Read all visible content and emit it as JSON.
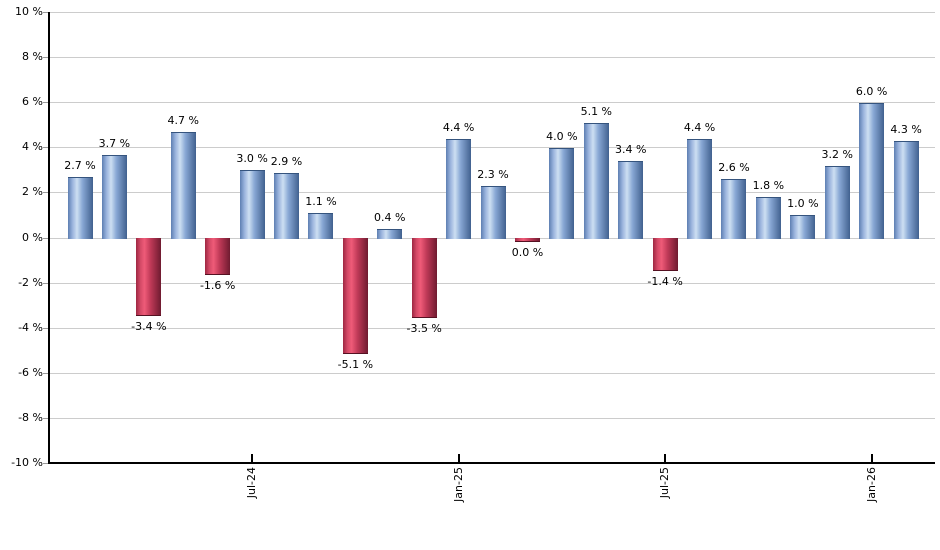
{
  "chart_data": {
    "type": "bar",
    "title": "",
    "xlabel": "",
    "ylabel": "",
    "unit": "%",
    "ylim": [
      -10,
      10
    ],
    "ytick_step": 2,
    "grid": true,
    "legend": false,
    "y_tick_labels": [
      "10 %",
      "8 %",
      "6 %",
      "4 %",
      "2 %",
      "0 %",
      "-2 %",
      "-4 %",
      "-6 %",
      "-8 %",
      "-10 %"
    ],
    "x_ticks": [
      {
        "label": "Jul-24",
        "bar_index": 5
      },
      {
        "label": "Jan-25",
        "bar_index": 11
      },
      {
        "label": "Jul-25",
        "bar_index": 17
      },
      {
        "label": "Jan-26",
        "bar_index": 23
      }
    ],
    "bars": [
      {
        "value": 2.7,
        "label": "2.7 %",
        "color": "positive"
      },
      {
        "value": 3.7,
        "label": "3.7 %",
        "color": "positive"
      },
      {
        "value": -3.4,
        "label": "-3.4 %",
        "color": "negative"
      },
      {
        "value": 4.7,
        "label": "4.7 %",
        "color": "positive"
      },
      {
        "value": -1.6,
        "label": "-1.6 %",
        "color": "negative"
      },
      {
        "value": 3.0,
        "label": "3.0 %",
        "color": "positive"
      },
      {
        "value": 2.9,
        "label": "2.9 %",
        "color": "positive"
      },
      {
        "value": 1.1,
        "label": "1.1 %",
        "color": "positive"
      },
      {
        "value": -5.1,
        "label": "-5.1 %",
        "color": "negative"
      },
      {
        "value": 0.4,
        "label": "0.4 %",
        "color": "positive"
      },
      {
        "value": -3.5,
        "label": "-3.5 %",
        "color": "negative"
      },
      {
        "value": 4.4,
        "label": "4.4 %",
        "color": "positive"
      },
      {
        "value": 2.3,
        "label": "2.3 %",
        "color": "positive"
      },
      {
        "value": 0.0,
        "label": "0.0 %",
        "color": "negative"
      },
      {
        "value": 4.0,
        "label": "4.0 %",
        "color": "positive"
      },
      {
        "value": 5.1,
        "label": "5.1 %",
        "color": "positive"
      },
      {
        "value": 3.4,
        "label": "3.4 %",
        "color": "positive"
      },
      {
        "value": -1.4,
        "label": "-1.4 %",
        "color": "negative"
      },
      {
        "value": 4.4,
        "label": "4.4 %",
        "color": "positive"
      },
      {
        "value": 2.6,
        "label": "2.6 %",
        "color": "positive"
      },
      {
        "value": 1.8,
        "label": "1.8 %",
        "color": "positive"
      },
      {
        "value": 1.0,
        "label": "1.0 %",
        "color": "positive"
      },
      {
        "value": 3.2,
        "label": "3.2 %",
        "color": "positive"
      },
      {
        "value": 6.0,
        "label": "6.0 %",
        "color": "positive"
      },
      {
        "value": 4.3,
        "label": "4.3 %",
        "color": "positive"
      }
    ],
    "colors": {
      "background": "#ffffff",
      "gridline": "#cccccc",
      "axis": "#000000",
      "label_text": "#000000",
      "positive_bar_main": "#7195c8",
      "positive_gradient": [
        "#5d7fb2",
        "#9ab3dd",
        "#cddff2",
        "#88a7d4",
        "#41618f"
      ],
      "positive_bar_edge": "#35547e",
      "negative_bar_main": "#d34a66",
      "negative_gradient": [
        "#9e2742",
        "#d44a67",
        "#ef5b78",
        "#c03a58",
        "#6f1b30"
      ],
      "negative_bar_edge": "#551122"
    }
  }
}
